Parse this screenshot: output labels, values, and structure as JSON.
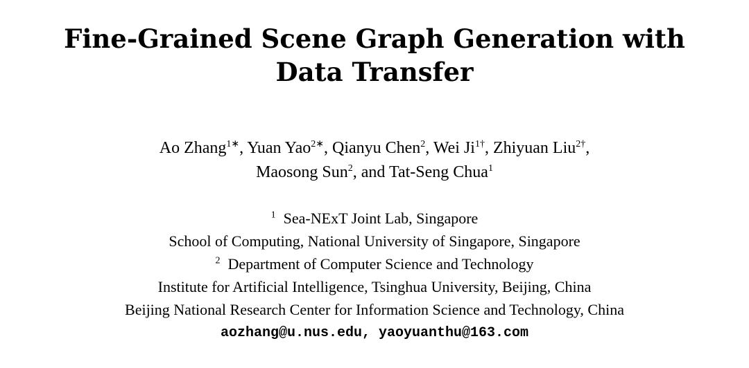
{
  "title": {
    "line1": "Fine-Grained Scene Graph Generation with",
    "line2": "Data Transfer"
  },
  "authors": [
    {
      "name": "Ao Zhang",
      "mark": "1∗",
      "sep": ", "
    },
    {
      "name": "Yuan Yao",
      "mark": "2∗",
      "sep": ", "
    },
    {
      "name": "Qianyu Chen",
      "mark": "2",
      "sep": ", "
    },
    {
      "name": "Wei Ji",
      "mark": "1†",
      "sep": ", "
    },
    {
      "name": "Zhiyuan Liu",
      "mark": "2†",
      "sep": ","
    },
    {
      "name": "Maosong Sun",
      "mark": "2",
      "sep": ", and "
    },
    {
      "name": "Tat-Seng Chua",
      "mark": "1",
      "sep": ""
    }
  ],
  "affiliations": {
    "a1_mark": "1",
    "a1": "Sea-NExT Joint Lab, Singapore",
    "a1b": "School of Computing, National University of Singapore, Singapore",
    "a2_mark": "2",
    "a2": "Department of Computer Science and Technology",
    "a2b": "Institute for Artificial Intelligence, Tsinghua University, Beijing, China",
    "a2c": "Beijing National Research Center for Information Science and Technology, China"
  },
  "emails": "aozhang@u.nus.edu, yaoyuanthu@163.com"
}
